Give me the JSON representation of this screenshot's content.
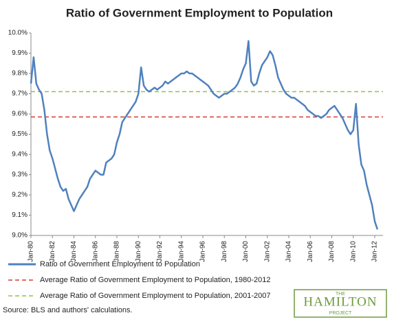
{
  "chart_data": {
    "type": "line",
    "title": "Ratio of Government Employment to Population",
    "categories": [
      "Jan-80",
      null,
      null,
      null,
      null,
      null,
      null,
      null,
      "Jan-82",
      null,
      null,
      null,
      null,
      null,
      null,
      null,
      "Jan-84",
      null,
      null,
      null,
      null,
      null,
      null,
      null,
      "Jan-86",
      null,
      null,
      null,
      null,
      null,
      null,
      null,
      "Jan-88",
      null,
      null,
      null,
      null,
      null,
      null,
      null,
      "Jan-90",
      null,
      null,
      null,
      null,
      null,
      null,
      null,
      "Jan-92",
      null,
      null,
      null,
      null,
      null,
      null,
      null,
      "Jan-94",
      null,
      null,
      null,
      null,
      null,
      null,
      null,
      "Jan-96",
      null,
      null,
      null,
      null,
      null,
      null,
      null,
      "Jan-98",
      null,
      null,
      null,
      null,
      null,
      null,
      null,
      "Jan-00",
      null,
      null,
      null,
      null,
      null,
      null,
      null,
      "Jan-02",
      null,
      null,
      null,
      null,
      null,
      null,
      null,
      "Jan-04",
      null,
      null,
      null,
      null,
      null,
      null,
      null,
      "Jan-06",
      null,
      null,
      null,
      null,
      null,
      null,
      null,
      "Jan-08",
      null,
      null,
      null,
      null,
      null,
      null,
      null,
      "Jan-10",
      null,
      null,
      null,
      null,
      null,
      null,
      null,
      "Jan-12",
      null
    ],
    "series": [
      {
        "name": "Ratio of Government Employment to Population",
        "color": "#4f81bd",
        "values": [
          9.75,
          9.88,
          9.75,
          9.72,
          9.7,
          9.62,
          9.5,
          9.42,
          9.38,
          9.33,
          9.28,
          9.24,
          9.22,
          9.23,
          9.18,
          9.15,
          9.12,
          9.15,
          9.18,
          9.2,
          9.22,
          9.24,
          9.28,
          9.3,
          9.32,
          9.31,
          9.3,
          9.3,
          9.36,
          9.37,
          9.38,
          9.4,
          9.46,
          9.5,
          9.56,
          9.58,
          9.6,
          9.62,
          9.64,
          9.66,
          9.7,
          9.83,
          9.74,
          9.72,
          9.71,
          9.72,
          9.73,
          9.72,
          9.73,
          9.74,
          9.76,
          9.75,
          9.76,
          9.77,
          9.78,
          9.79,
          9.8,
          9.8,
          9.81,
          9.8,
          9.8,
          9.79,
          9.78,
          9.77,
          9.76,
          9.75,
          9.74,
          9.72,
          9.7,
          9.69,
          9.68,
          9.69,
          9.7,
          9.7,
          9.71,
          9.72,
          9.73,
          9.75,
          9.78,
          9.82,
          9.85,
          9.96,
          9.76,
          9.74,
          9.75,
          9.8,
          9.84,
          9.86,
          9.88,
          9.91,
          9.89,
          9.84,
          9.78,
          9.75,
          9.72,
          9.7,
          9.69,
          9.68,
          9.68,
          9.67,
          9.66,
          9.65,
          9.64,
          9.62,
          9.61,
          9.6,
          9.59,
          9.59,
          9.58,
          9.59,
          9.6,
          9.62,
          9.63,
          9.64,
          9.62,
          9.6,
          9.58,
          9.55,
          9.52,
          9.5,
          9.52,
          9.65,
          9.45,
          9.35,
          9.32,
          9.25,
          9.2,
          9.15,
          9.07,
          9.03
        ]
      }
    ],
    "reference_lines": [
      {
        "name": "Average Ratio of Government Employment to Population, 1980-2012",
        "value": 9.585,
        "color": "#d63a30"
      },
      {
        "name": "Average Ratio of Government Employment to Population, 2001-2007",
        "value": 9.71,
        "color": "#92c043"
      }
    ],
    "ylim": [
      9.0,
      10.0
    ],
    "yticks": [
      {
        "value": 9.0,
        "label": "9.0%"
      },
      {
        "value": 9.1,
        "label": "9.1%"
      },
      {
        "value": 9.2,
        "label": "9.2%"
      },
      {
        "value": 9.3,
        "label": "9.3%"
      },
      {
        "value": 9.4,
        "label": "9.4%"
      },
      {
        "value": 9.5,
        "label": "9.5%"
      },
      {
        "value": 9.6,
        "label": "9.6%"
      },
      {
        "value": 9.7,
        "label": "9.7%"
      },
      {
        "value": 9.8,
        "label": "9.8%"
      },
      {
        "value": 9.9,
        "label": "9.9%"
      },
      {
        "value": 10.0,
        "label": "10.0%"
      }
    ],
    "source": "Source: BLS and authors' calculations.",
    "logo": {
      "top": "THE",
      "name": "HAMILTON",
      "bottom": "PROJECT"
    }
  }
}
